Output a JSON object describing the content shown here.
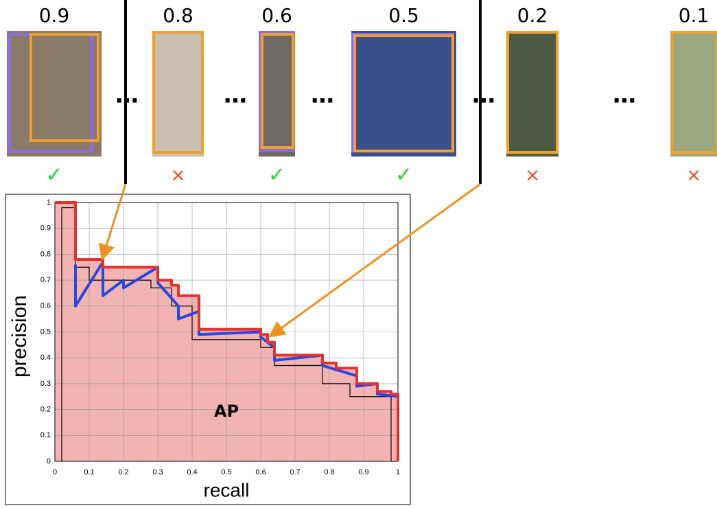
{
  "detections": [
    {
      "score": 0.9,
      "result": "✓"
    },
    {
      "score": 0.8,
      "result": "×"
    },
    {
      "score": 0.6,
      "result": "✓"
    },
    {
      "score": 0.5,
      "result": "✓"
    },
    {
      "score": 0.2,
      "result": "×"
    },
    {
      "score": 0.1,
      "result": "×"
    }
  ],
  "ellipsis": "…",
  "chart_data": {
    "type": "line",
    "xlabel": "recall",
    "ylabel": "precision",
    "annotation": "AP",
    "xlim": [
      0,
      1
    ],
    "ylim": [
      0,
      1
    ],
    "xticks": [
      0,
      0.1,
      0.2,
      0.3,
      0.4,
      0.5,
      0.6,
      0.7,
      0.8,
      0.9,
      1
    ],
    "yticks": [
      0,
      0.1,
      0.2,
      0.3,
      0.4,
      0.5,
      0.6,
      0.7,
      0.8,
      0.9,
      1
    ],
    "grid": true,
    "series": [
      {
        "color": "#000000",
        "width": 1.2,
        "x": [
          0.02,
          0.02,
          0.06,
          0.06,
          0.1,
          0.1,
          0.28,
          0.28,
          0.34,
          0.34,
          0.4,
          0.4,
          0.6,
          0.6,
          0.64,
          0.64,
          0.78,
          0.78,
          0.86,
          0.86,
          0.98,
          0.98
        ],
        "values": [
          0,
          0.98,
          0.98,
          0.75,
          0.75,
          0.7,
          0.7,
          0.67,
          0.67,
          0.6,
          0.6,
          0.47,
          0.47,
          0.44,
          0.44,
          0.37,
          0.37,
          0.3,
          0.3,
          0.25,
          0.25,
          0
        ]
      },
      {
        "color": "#2846e0",
        "width": 4,
        "x": [
          0.06,
          0.06,
          0.14,
          0.14,
          0.2,
          0.2,
          0.3,
          0.3,
          0.36,
          0.36,
          0.42,
          0.42,
          0.6,
          0.6,
          0.64,
          0.64,
          0.78,
          0.78,
          0.88,
          0.88,
          0.94,
          0.94,
          1
        ],
        "values": [
          0.76,
          0.6,
          0.77,
          0.64,
          0.7,
          0.67,
          0.75,
          0.69,
          0.6,
          0.55,
          0.58,
          0.49,
          0.5,
          0.48,
          0.44,
          0.39,
          0.41,
          0.37,
          0.33,
          0.29,
          0.3,
          0.26,
          0.25
        ]
      },
      {
        "color": "#e8312f",
        "width": 4,
        "area_color": "#f2b3b3",
        "x": [
          0,
          0.06,
          0.06,
          0.14,
          0.14,
          0.3,
          0.3,
          0.34,
          0.34,
          0.36,
          0.36,
          0.42,
          0.42,
          0.6,
          0.6,
          0.62,
          0.62,
          0.64,
          0.64,
          0.78,
          0.78,
          0.82,
          0.82,
          0.88,
          0.88,
          0.94,
          0.94,
          0.98,
          0.98,
          1,
          1
        ],
        "values": [
          1,
          1,
          0.78,
          0.78,
          0.75,
          0.75,
          0.7,
          0.7,
          0.68,
          0.68,
          0.64,
          0.64,
          0.51,
          0.51,
          0.49,
          0.49,
          0.46,
          0.46,
          0.41,
          0.41,
          0.38,
          0.38,
          0.36,
          0.36,
          0.3,
          0.3,
          0.27,
          0.27,
          0.26,
          0.26,
          0
        ]
      }
    ]
  }
}
